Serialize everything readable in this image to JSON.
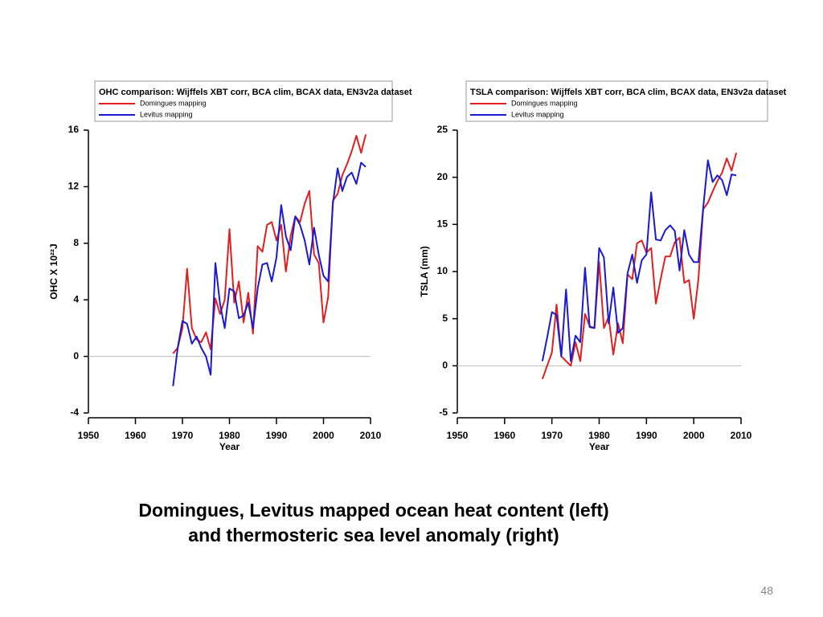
{
  "chart_data": [
    {
      "type": "line",
      "title": "OHC comparison: Wijffels XBT corr, BCA clim, BCAX data, EN3v2a dataset",
      "xlabel": "Year",
      "ylabel": "OHC X 10²²J",
      "x": [
        1968,
        1969,
        1970,
        1971,
        1972,
        1973,
        1974,
        1975,
        1976,
        1977,
        1978,
        1979,
        1980,
        1981,
        1982,
        1983,
        1984,
        1985,
        1986,
        1987,
        1988,
        1989,
        1990,
        1991,
        1992,
        1993,
        1994,
        1995,
        1996,
        1997,
        1998,
        1999,
        2000,
        2001,
        2002,
        2003,
        2004,
        2005,
        2006,
        2007,
        2008,
        2009
      ],
      "series": [
        {
          "name": "Domingues mapping",
          "color": "#e02020",
          "values": [
            0.2,
            0.6,
            2.0,
            6.2,
            2.0,
            1.2,
            1.0,
            1.7,
            0.5,
            4.1,
            3.0,
            4.0,
            9.0,
            3.8,
            5.3,
            2.4,
            4.5,
            1.6,
            7.8,
            7.4,
            9.3,
            9.5,
            8.2,
            9.3,
            6.0,
            8.5,
            9.9,
            9.5,
            10.8,
            11.7,
            7.2,
            6.6,
            2.4,
            4.2,
            11.0,
            11.5,
            12.8,
            13.6,
            14.5,
            15.6,
            14.4,
            15.7
          ]
        },
        {
          "name": "Levitus mapping",
          "color": "#1a1ad0",
          "values": [
            -2.1,
            0.6,
            2.5,
            2.3,
            0.9,
            1.4,
            0.6,
            0.0,
            -1.3,
            6.6,
            3.7,
            2.0,
            4.8,
            4.6,
            2.7,
            2.9,
            3.8,
            2.0,
            4.8,
            6.5,
            6.6,
            5.3,
            7.0,
            10.7,
            8.5,
            7.5,
            9.9,
            9.3,
            8.2,
            6.5,
            9.1,
            7.2,
            5.7,
            5.3,
            10.8,
            13.3,
            11.7,
            12.7,
            13.0,
            12.2,
            13.7,
            13.4
          ]
        }
      ],
      "xlim": [
        1950,
        2010
      ],
      "xticks": [
        1950,
        1960,
        1970,
        1980,
        1990,
        2000,
        2010
      ],
      "ylim": [
        -4,
        16
      ],
      "yticks": [
        -4,
        0,
        4,
        8,
        12,
        16
      ],
      "hline": 0
    },
    {
      "type": "line",
      "title": "TSLA comparison: Wijffels XBT corr, BCA clim, BCAX data, EN3v2a dataset",
      "xlabel": "Year",
      "ylabel": "TSLA (mm)",
      "x": [
        1968,
        1969,
        1970,
        1971,
        1972,
        1973,
        1974,
        1975,
        1976,
        1977,
        1978,
        1979,
        1980,
        1981,
        1982,
        1983,
        1984,
        1985,
        1986,
        1987,
        1988,
        1989,
        1990,
        1991,
        1992,
        1993,
        1994,
        1995,
        1996,
        1997,
        1998,
        1999,
        2000,
        2001,
        2002,
        2003,
        2004,
        2005,
        2006,
        2007,
        2008,
        2009
      ],
      "series": [
        {
          "name": "Domingues mapping",
          "color": "#e02020",
          "values": [
            -1.4,
            0,
            1.4,
            6.5,
            1.0,
            0.5,
            0,
            2.5,
            0.5,
            5.5,
            4.2,
            4.0,
            11.0,
            4.0,
            5.2,
            1.2,
            4.5,
            2.4,
            9.7,
            9.2,
            13.0,
            13.3,
            12.0,
            12.5,
            6.6,
            9.2,
            11.6,
            11.6,
            13.1,
            13.6,
            8.8,
            9.1,
            5.0,
            9.2,
            16.6,
            17.3,
            18.5,
            19.6,
            20.5,
            22.0,
            20.7,
            22.6
          ]
        },
        {
          "name": "Levitus mapping",
          "color": "#1a1ad0",
          "values": [
            0.5,
            3.0,
            5.7,
            5.4,
            1.0,
            8.1,
            0.5,
            3.2,
            2.5,
            10.4,
            4.1,
            4.0,
            12.5,
            11.5,
            4.5,
            8.3,
            3.5,
            4.0,
            9.8,
            11.8,
            8.8,
            11.2,
            11.8,
            18.4,
            13.4,
            13.3,
            14.4,
            14.9,
            14.3,
            10.1,
            14.4,
            11.8,
            11.0,
            11.0,
            16.7,
            21.8,
            19.5,
            20.2,
            19.7,
            18.1,
            20.3,
            20.2
          ]
        }
      ],
      "xlim": [
        1950,
        2010
      ],
      "xticks": [
        1950,
        1960,
        1970,
        1980,
        1990,
        2000,
        2010
      ],
      "ylim": [
        -5,
        25
      ],
      "yticks": [
        -5,
        0,
        5,
        10,
        15,
        20,
        25
      ],
      "hline": 0
    }
  ],
  "caption": [
    "Domingues, Levitus mapped ocean heat content (left)",
    "and thermosteric sea level anomaly (right)"
  ],
  "page_number": "48"
}
